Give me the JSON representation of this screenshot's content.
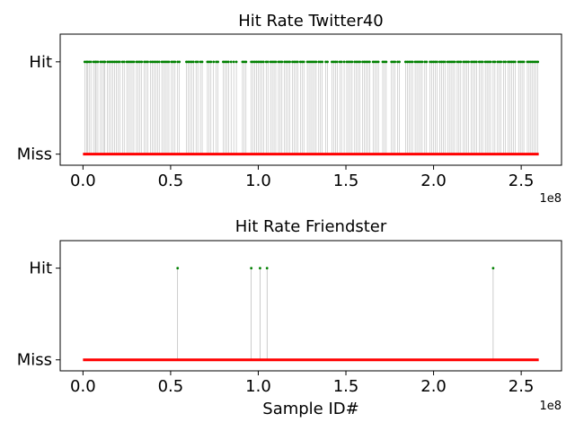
{
  "chart_data": [
    {
      "type": "line",
      "title": "Hit Rate Twitter40",
      "xlabel": "",
      "ylabel": "",
      "xlim": [
        -13000000,
        273000000
      ],
      "ylim": [
        -0.12,
        1.3
      ],
      "x_ticks": [
        0,
        50000000,
        100000000,
        150000000,
        200000000,
        250000000
      ],
      "x_tick_labels": [
        "0.0",
        "0.5",
        "1.0",
        "1.5",
        "2.0",
        "2.5"
      ],
      "x_offset_label": "1e8",
      "y_ticks": [
        0,
        1
      ],
      "y_tick_labels": [
        "Miss",
        "Hit"
      ],
      "x_range": [
        0,
        260000000
      ],
      "hit_color": "#008000",
      "miss_color": "#ff0000",
      "stem_color": "#bbbbbb",
      "series": [
        {
          "values": [
            [
              1000000,
              1
            ],
            [
              2000000,
              1
            ],
            [
              2500000,
              1
            ],
            [
              3500000,
              1
            ],
            [
              4500000,
              1
            ],
            [
              6000000,
              1
            ],
            [
              7000000,
              1
            ],
            [
              7500000,
              1
            ],
            [
              8500000,
              1
            ],
            [
              10000000,
              1
            ],
            [
              11000000,
              1
            ],
            [
              12000000,
              1
            ],
            [
              12500000,
              1
            ],
            [
              14000000,
              1
            ],
            [
              15000000,
              1
            ],
            [
              16000000,
              1
            ],
            [
              17000000,
              1
            ],
            [
              18000000,
              1
            ],
            [
              19000000,
              1
            ],
            [
              20000000,
              1
            ],
            [
              21000000,
              1
            ],
            [
              22500000,
              1
            ],
            [
              23500000,
              1
            ],
            [
              25000000,
              1
            ],
            [
              26000000,
              1
            ],
            [
              27000000,
              1
            ],
            [
              28000000,
              1
            ],
            [
              29000000,
              1
            ],
            [
              30500000,
              1
            ],
            [
              31500000,
              1
            ],
            [
              32500000,
              1
            ],
            [
              33500000,
              1
            ],
            [
              35000000,
              1
            ],
            [
              36000000,
              1
            ],
            [
              37000000,
              1
            ],
            [
              38500000,
              1
            ],
            [
              39500000,
              1
            ],
            [
              40500000,
              1
            ],
            [
              41500000,
              1
            ],
            [
              42500000,
              1
            ],
            [
              43500000,
              1
            ],
            [
              45000000,
              1
            ],
            [
              46000000,
              1
            ],
            [
              47000000,
              1
            ],
            [
              48000000,
              1
            ],
            [
              49000000,
              1
            ],
            [
              50500000,
              1
            ],
            [
              51500000,
              1
            ],
            [
              52500000,
              1
            ],
            [
              54000000,
              1
            ],
            [
              55000000,
              1
            ],
            [
              59000000,
              1
            ],
            [
              60000000,
              1
            ],
            [
              61000000,
              1
            ],
            [
              62000000,
              1
            ],
            [
              63000000,
              1
            ],
            [
              64500000,
              1
            ],
            [
              65500000,
              1
            ],
            [
              67000000,
              1
            ],
            [
              68000000,
              1
            ],
            [
              71000000,
              1
            ],
            [
              72000000,
              1
            ],
            [
              73000000,
              1
            ],
            [
              74500000,
              1
            ],
            [
              76000000,
              1
            ],
            [
              77000000,
              1
            ],
            [
              80000000,
              1
            ],
            [
              81000000,
              1
            ],
            [
              82000000,
              1
            ],
            [
              83000000,
              1
            ],
            [
              84500000,
              1
            ],
            [
              86000000,
              1
            ],
            [
              87500000,
              1
            ],
            [
              91000000,
              1
            ],
            [
              92000000,
              1
            ],
            [
              93000000,
              1
            ],
            [
              96000000,
              1
            ],
            [
              97000000,
              1
            ],
            [
              98000000,
              1
            ],
            [
              99000000,
              1
            ],
            [
              100000000,
              1
            ],
            [
              101000000,
              1
            ],
            [
              102000000,
              1
            ],
            [
              103000000,
              1
            ],
            [
              104500000,
              1
            ],
            [
              105500000,
              1
            ],
            [
              107000000,
              1
            ],
            [
              108000000,
              1
            ],
            [
              109000000,
              1
            ],
            [
              110000000,
              1
            ],
            [
              111500000,
              1
            ],
            [
              112500000,
              1
            ],
            [
              113500000,
              1
            ],
            [
              115000000,
              1
            ],
            [
              116000000,
              1
            ],
            [
              117000000,
              1
            ],
            [
              118000000,
              1
            ],
            [
              119500000,
              1
            ],
            [
              120500000,
              1
            ],
            [
              121500000,
              1
            ],
            [
              122500000,
              1
            ],
            [
              124000000,
              1
            ],
            [
              125000000,
              1
            ],
            [
              126000000,
              1
            ],
            [
              128000000,
              1
            ],
            [
              129000000,
              1
            ],
            [
              130000000,
              1
            ],
            [
              131000000,
              1
            ],
            [
              132000000,
              1
            ],
            [
              133000000,
              1
            ],
            [
              134500000,
              1
            ],
            [
              135500000,
              1
            ],
            [
              136500000,
              1
            ],
            [
              138500000,
              1
            ],
            [
              139500000,
              1
            ],
            [
              142000000,
              1
            ],
            [
              143000000,
              1
            ],
            [
              144000000,
              1
            ],
            [
              145000000,
              1
            ],
            [
              146500000,
              1
            ],
            [
              147500000,
              1
            ],
            [
              149000000,
              1
            ],
            [
              150500000,
              1
            ],
            [
              151500000,
              1
            ],
            [
              152500000,
              1
            ],
            [
              153500000,
              1
            ],
            [
              155000000,
              1
            ],
            [
              156000000,
              1
            ],
            [
              157000000,
              1
            ],
            [
              158000000,
              1
            ],
            [
              159500000,
              1
            ],
            [
              160500000,
              1
            ],
            [
              161500000,
              1
            ],
            [
              162500000,
              1
            ],
            [
              163500000,
              1
            ],
            [
              165500000,
              1
            ],
            [
              166500000,
              1
            ],
            [
              167500000,
              1
            ],
            [
              168500000,
              1
            ],
            [
              171000000,
              1
            ],
            [
              172000000,
              1
            ],
            [
              173000000,
              1
            ],
            [
              176000000,
              1
            ],
            [
              177000000,
              1
            ],
            [
              178000000,
              1
            ],
            [
              179500000,
              1
            ],
            [
              180500000,
              1
            ],
            [
              184000000,
              1
            ],
            [
              185000000,
              1
            ],
            [
              186000000,
              1
            ],
            [
              187000000,
              1
            ],
            [
              188000000,
              1
            ],
            [
              189500000,
              1
            ],
            [
              190500000,
              1
            ],
            [
              191500000,
              1
            ],
            [
              192500000,
              1
            ],
            [
              193500000,
              1
            ],
            [
              195000000,
              1
            ],
            [
              196000000,
              1
            ],
            [
              198000000,
              1
            ],
            [
              199000000,
              1
            ],
            [
              200000000,
              1
            ],
            [
              201000000,
              1
            ],
            [
              202000000,
              1
            ],
            [
              203500000,
              1
            ],
            [
              204500000,
              1
            ],
            [
              205500000,
              1
            ],
            [
              206500000,
              1
            ],
            [
              208000000,
              1
            ],
            [
              209000000,
              1
            ],
            [
              210000000,
              1
            ],
            [
              211000000,
              1
            ],
            [
              212000000,
              1
            ],
            [
              213500000,
              1
            ],
            [
              214500000,
              1
            ],
            [
              215500000,
              1
            ],
            [
              217000000,
              1
            ],
            [
              218000000,
              1
            ],
            [
              219000000,
              1
            ],
            [
              220000000,
              1
            ],
            [
              221500000,
              1
            ],
            [
              222500000,
              1
            ],
            [
              223500000,
              1
            ],
            [
              224500000,
              1
            ],
            [
              226000000,
              1
            ],
            [
              227000000,
              1
            ],
            [
              228000000,
              1
            ],
            [
              229500000,
              1
            ],
            [
              230500000,
              1
            ],
            [
              231500000,
              1
            ],
            [
              232500000,
              1
            ],
            [
              234000000,
              1
            ],
            [
              235000000,
              1
            ],
            [
              236500000,
              1
            ],
            [
              237500000,
              1
            ],
            [
              238500000,
              1
            ],
            [
              240000000,
              1
            ],
            [
              241000000,
              1
            ],
            [
              242500000,
              1
            ],
            [
              243500000,
              1
            ],
            [
              244500000,
              1
            ],
            [
              245500000,
              1
            ],
            [
              246500000,
              1
            ],
            [
              248500000,
              1
            ],
            [
              249500000,
              1
            ],
            [
              250500000,
              1
            ],
            [
              251500000,
              1
            ],
            [
              253500000,
              1
            ],
            [
              254500000,
              1
            ],
            [
              255500000,
              1
            ],
            [
              256500000,
              1
            ],
            [
              257500000,
              1
            ],
            [
              258500000,
              1
            ],
            [
              259500000,
              1
            ]
          ]
        }
      ]
    },
    {
      "type": "line",
      "title": "Hit Rate Friendster",
      "xlabel": "Sample ID#",
      "ylabel": "",
      "xlim": [
        -13000000,
        273000000
      ],
      "ylim": [
        -0.12,
        1.3
      ],
      "x_ticks": [
        0,
        50000000,
        100000000,
        150000000,
        200000000,
        250000000
      ],
      "x_tick_labels": [
        "0.0",
        "0.5",
        "1.0",
        "1.5",
        "2.0",
        "2.5"
      ],
      "x_offset_label": "1e8",
      "y_ticks": [
        0,
        1
      ],
      "y_tick_labels": [
        "Miss",
        "Hit"
      ],
      "x_range": [
        0,
        260000000
      ],
      "hit_color": "#008000",
      "miss_color": "#ff0000",
      "stem_color": "#aaaaaa",
      "series": [
        {
          "values": [
            [
              54000000,
              1
            ],
            [
              96000000,
              1
            ],
            [
              101000000,
              1
            ],
            [
              105000000,
              1
            ],
            [
              234000000,
              1
            ]
          ]
        }
      ]
    }
  ]
}
